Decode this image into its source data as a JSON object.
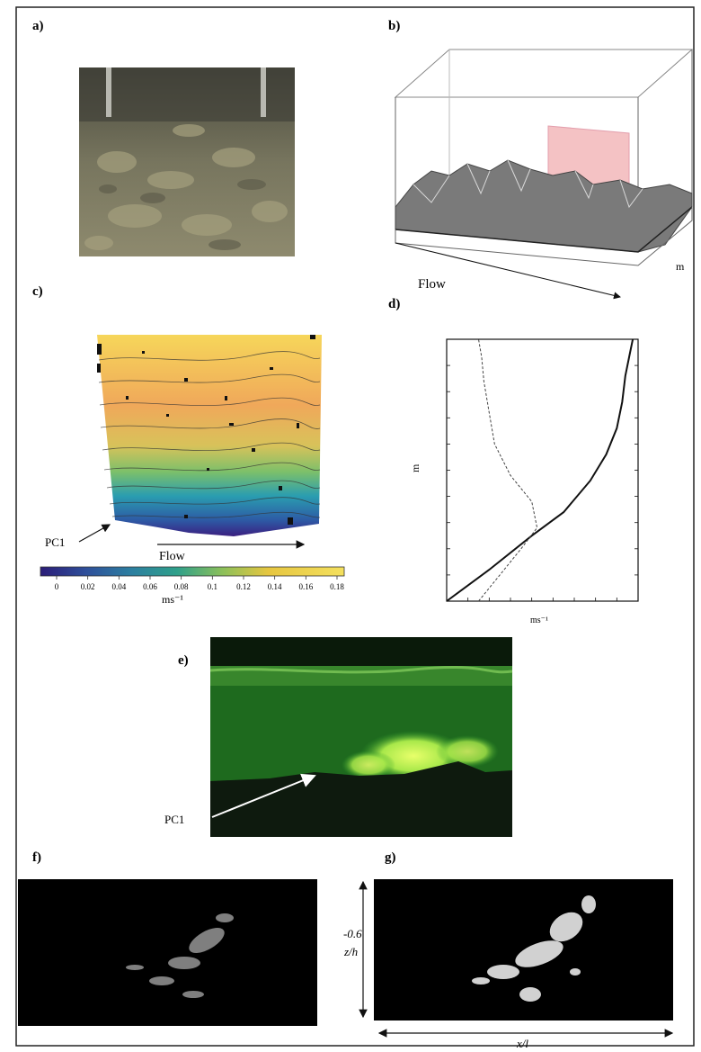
{
  "panels": {
    "a": {
      "label": "a)"
    },
    "b": {
      "label": "b)",
      "arrow_label": "Flow",
      "side_label": "m"
    },
    "c": {
      "label": "c)",
      "pointer_label": "PC1",
      "arrow_label": "Flow",
      "colorbar_ticks": [
        "0",
        "0.02",
        "0.04",
        "0.06",
        "0.08",
        "0.1",
        "0.12",
        "0.14",
        "0.16",
        "0.18"
      ],
      "colorbar_unit": "ms⁻¹"
    },
    "d": {
      "label": "d)",
      "ylabel": "m",
      "xunit": "ms⁻¹"
    },
    "e": {
      "label": "e)",
      "pointer_label": "PC1"
    },
    "f": {
      "label": "f)"
    },
    "g": {
      "label": "g)",
      "vertical_value": "-0.6",
      "vertical_label": "z/h",
      "horizontal_label": "x/l"
    }
  },
  "chart_data": {
    "type": "line",
    "title": "",
    "xlabel": "ms⁻¹",
    "ylabel": "m",
    "xlim": [
      0.0,
      0.18
    ],
    "ylim": [
      0.0,
      1.0
    ],
    "series": [
      {
        "name": "",
        "x": [
          0.0,
          0.04,
          0.08,
          0.11,
          0.135,
          0.15,
          0.16,
          0.165,
          0.168,
          0.172,
          0.175
        ],
        "y": [
          0.0,
          0.12,
          0.25,
          0.34,
          0.46,
          0.56,
          0.66,
          0.76,
          0.86,
          0.94,
          1.0
        ]
      },
      {
        "name": "",
        "x": [
          0.03,
          0.05,
          0.07,
          0.085,
          0.08,
          0.06,
          0.045,
          0.04,
          0.035,
          0.033,
          0.03
        ],
        "y": [
          0.0,
          0.1,
          0.2,
          0.28,
          0.38,
          0.48,
          0.6,
          0.72,
          0.84,
          0.93,
          1.0
        ]
      }
    ]
  }
}
